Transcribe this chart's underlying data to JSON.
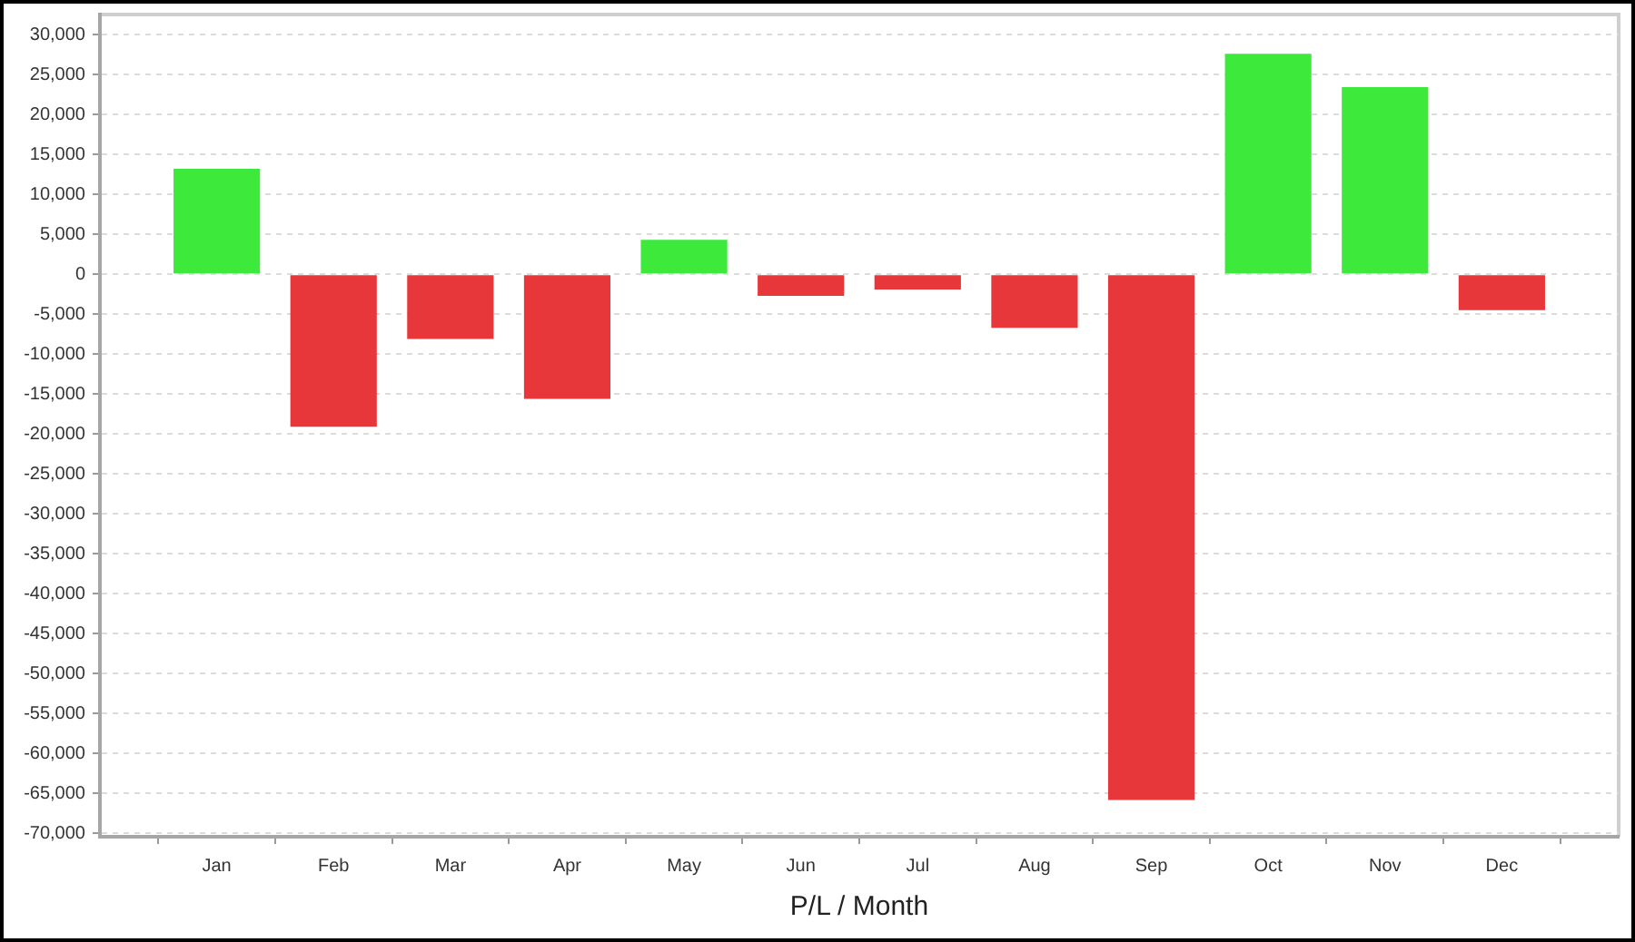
{
  "chart_data": {
    "type": "bar",
    "xlabel": "P/L / Month",
    "categories": [
      "Jan",
      "Feb",
      "Mar",
      "Apr",
      "May",
      "Jun",
      "Jul",
      "Aug",
      "Sep",
      "Oct",
      "Nov",
      "Dec"
    ],
    "values": [
      13200,
      -19100,
      -8100,
      -15600,
      4300,
      -2700,
      -1900,
      -6700,
      -65800,
      27600,
      23400,
      -4500
    ],
    "colors": [
      "#3de93b",
      "#e8373b",
      "#e8373b",
      "#e8373b",
      "#3de93b",
      "#e8373b",
      "#e8373b",
      "#e8373b",
      "#e8373b",
      "#3de93b",
      "#3de93b",
      "#e8373b"
    ],
    "ylim": [
      -70400,
      32500
    ],
    "yticks": [
      {
        "value": -70000,
        "label": "-70,000"
      },
      {
        "value": -65000,
        "label": "-65,000"
      },
      {
        "value": -60000,
        "label": "-60,000"
      },
      {
        "value": -55000,
        "label": "-55,000"
      },
      {
        "value": -50000,
        "label": "-50,000"
      },
      {
        "value": -45000,
        "label": "-45,000"
      },
      {
        "value": -40000,
        "label": "-40,000"
      },
      {
        "value": -35000,
        "label": "-35,000"
      },
      {
        "value": -30000,
        "label": "-30,000"
      },
      {
        "value": -25000,
        "label": "-25,000"
      },
      {
        "value": -20000,
        "label": "-20,000"
      },
      {
        "value": -15000,
        "label": "-15,000"
      },
      {
        "value": -10000,
        "label": "-10,000"
      },
      {
        "value": -5000,
        "label": "-5,000"
      },
      0,
      {
        "value": 5000,
        "label": "5,000"
      },
      {
        "value": 10000,
        "label": "10,000"
      },
      {
        "value": 15000,
        "label": "15,000"
      },
      {
        "value": 20000,
        "label": "20,000"
      },
      {
        "value": 25000,
        "label": "25,000"
      },
      {
        "value": 30000,
        "label": "30,000"
      }
    ],
    "grid": "y"
  }
}
